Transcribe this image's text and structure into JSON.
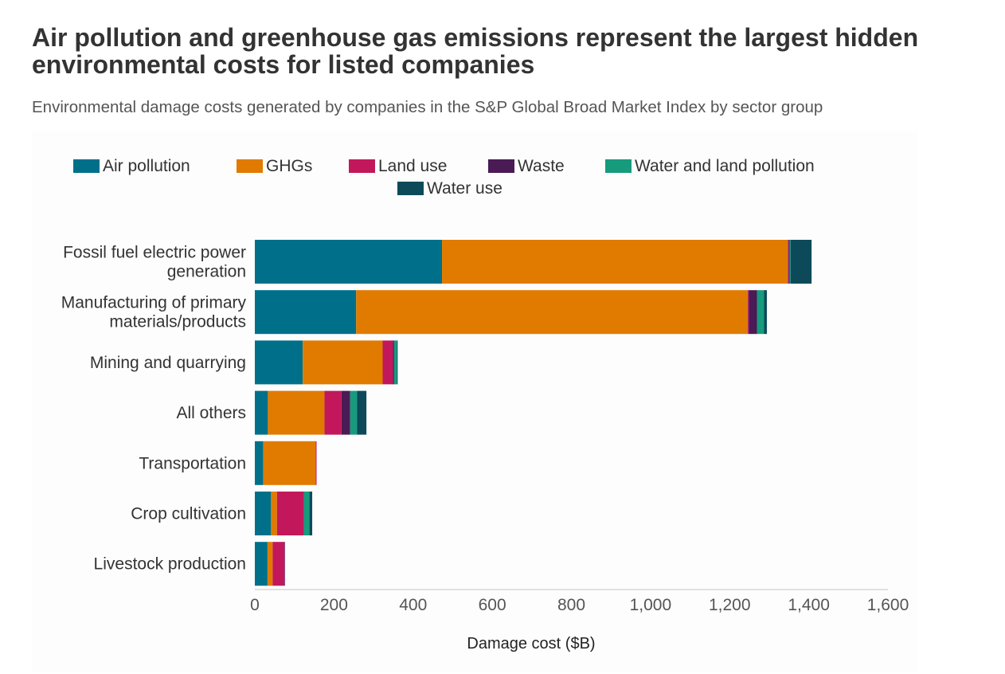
{
  "title": "Air pollution and greenhouse gas emissions represent the largest hidden environmental costs for listed companies",
  "subtitle": "Environmental damage costs generated by companies in the S&P Global Broad Market Index by sector group",
  "chart_data": {
    "type": "bar",
    "orientation": "horizontal",
    "stacked": true,
    "title": "Air pollution and greenhouse gas emissions represent the largest hidden environmental costs for listed companies",
    "subtitle": "Environmental damage costs generated by companies in the S&P Global Broad Market Index by sector group",
    "xlabel": "Damage cost ($B)",
    "ylabel": "",
    "xlim": [
      0,
      1600
    ],
    "xticks": [
      0,
      200,
      400,
      600,
      800,
      1000,
      1200,
      1400,
      1600
    ],
    "xtick_labels": [
      "0",
      "200",
      "400",
      "600",
      "800",
      "1,000",
      "1,200",
      "1,400",
      "1,600"
    ],
    "grid": false,
    "legend_position": "top",
    "categories": [
      "Fossil fuel electric power generation",
      "Manufacturing of primary materials/products",
      "Mining and quarrying",
      "All others",
      "Transportation",
      "Crop cultivation",
      "Livestock production"
    ],
    "category_label_lines": [
      [
        "Fossil fuel electric power",
        "generation"
      ],
      [
        "Manufacturing of primary",
        "materials/products"
      ],
      [
        "Mining and quarrying"
      ],
      [
        "All others"
      ],
      [
        "Transportation"
      ],
      [
        "Crop cultivation"
      ],
      [
        "Livestock production"
      ]
    ],
    "series": [
      {
        "name": "Air pollution",
        "color": "#00708a",
        "values": [
          473,
          256,
          121,
          33,
          21,
          41,
          32
        ]
      },
      {
        "name": "GHGs",
        "color": "#e07b00",
        "values": [
          874,
          990,
          202,
          143,
          133,
          15,
          13
        ]
      },
      {
        "name": "Land use",
        "color": "#c2185b",
        "values": [
          2,
          2,
          26,
          43,
          2,
          67,
          30
        ]
      },
      {
        "name": "Waste",
        "color": "#4a1b54",
        "values": [
          3,
          21,
          3,
          22,
          0,
          1,
          1
        ]
      },
      {
        "name": "Water and land pollution",
        "color": "#169b7c",
        "values": [
          2,
          18,
          7,
          17,
          0,
          14,
          0
        ]
      },
      {
        "name": "Water use",
        "color": "#0c4a5a",
        "values": [
          53,
          7,
          2,
          24,
          0,
          7,
          0
        ]
      }
    ]
  }
}
